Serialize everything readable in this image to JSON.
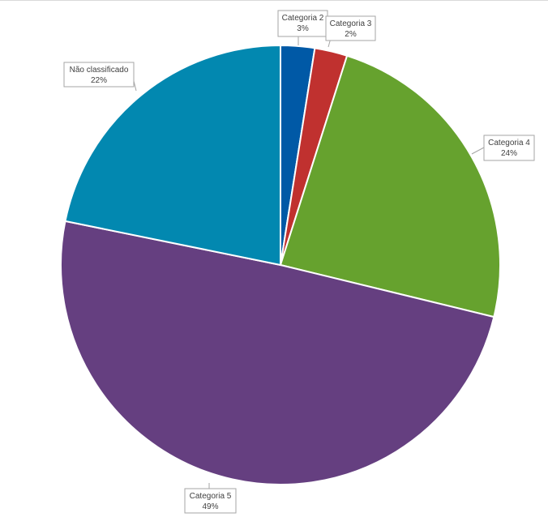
{
  "chart_data": {
    "type": "pie",
    "title": "",
    "start_angle_deg": 0,
    "direction": "clockwise",
    "slices": [
      {
        "name": "Categoria 2",
        "value": 2.5,
        "label_pct": "3%",
        "color": "#0059a6"
      },
      {
        "name": "Categoria 3",
        "value": 2.4,
        "label_pct": "2%",
        "color": "#c0312f"
      },
      {
        "name": "Categoria 4",
        "value": 23.9,
        "label_pct": "24%",
        "color": "#66a22e"
      },
      {
        "name": "Categoria 5",
        "value": 49.4,
        "label_pct": "49%",
        "color": "#653f80"
      },
      {
        "name": "Não classificado",
        "value": 21.8,
        "label_pct": "22%",
        "color": "#0288b0"
      }
    ],
    "data_labels": true,
    "legend": "none"
  }
}
